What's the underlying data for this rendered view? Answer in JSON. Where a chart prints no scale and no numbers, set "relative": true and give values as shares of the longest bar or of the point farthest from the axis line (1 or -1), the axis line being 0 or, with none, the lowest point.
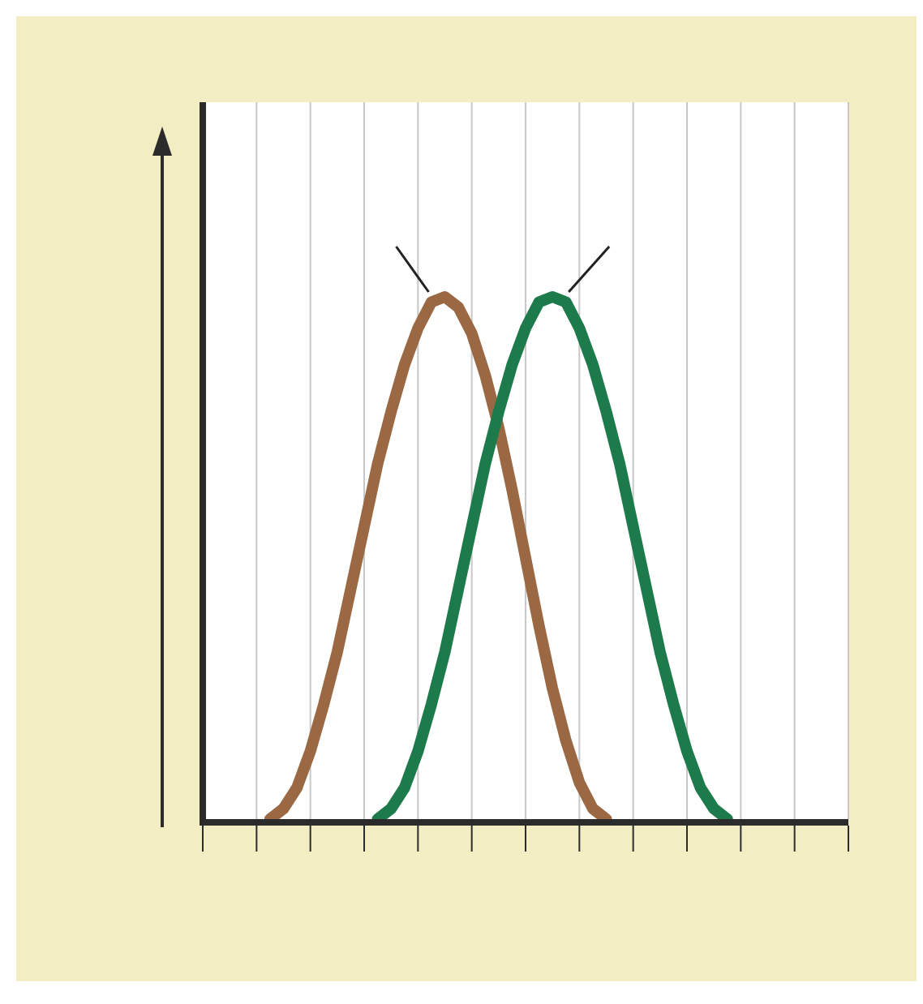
{
  "chart_data": {
    "type": "line",
    "relative": true,
    "categories": [
      null,
      null,
      null,
      null,
      null,
      null,
      null,
      null,
      null,
      null,
      null,
      null,
      null,
      null,
      null,
      null,
      null,
      null,
      null,
      null,
      null,
      null,
      null,
      null,
      null,
      null,
      null,
      null,
      null,
      null,
      null,
      null,
      null,
      null,
      null,
      null,
      null,
      null,
      null,
      null,
      null,
      null,
      null,
      null,
      null,
      null,
      null,
      null,
      null
    ],
    "grid": "x",
    "series": [
      {
        "color": "#9a6843",
        "values": [
          null,
          null,
          null,
          null,
          null,
          0,
          0.02,
          0.06,
          0.13,
          0.22,
          0.32,
          0.44,
          0.56,
          0.68,
          0.78,
          0.87,
          0.94,
          0.99,
          1,
          0.98,
          0.93,
          0.85,
          0.75,
          0.63,
          0.5,
          0.37,
          0.25,
          0.15,
          0.07,
          0.02,
          0,
          null,
          null,
          null,
          null,
          null,
          null,
          null,
          null,
          null,
          null,
          null,
          null,
          null,
          null,
          null,
          null,
          null,
          null
        ]
      },
      {
        "color": "#1d7a4b",
        "values": [
          null,
          null,
          null,
          null,
          null,
          null,
          null,
          null,
          null,
          null,
          null,
          null,
          null,
          0,
          0.02,
          0.06,
          0.13,
          0.22,
          0.32,
          0.44,
          0.56,
          0.68,
          0.78,
          0.87,
          0.94,
          0.99,
          1,
          0.99,
          0.94,
          0.87,
          0.78,
          0.68,
          0.56,
          0.44,
          0.32,
          0.22,
          0.13,
          0.06,
          0.02,
          0,
          null,
          null,
          null,
          null,
          null,
          null,
          null,
          null,
          null
        ]
      }
    ]
  }
}
